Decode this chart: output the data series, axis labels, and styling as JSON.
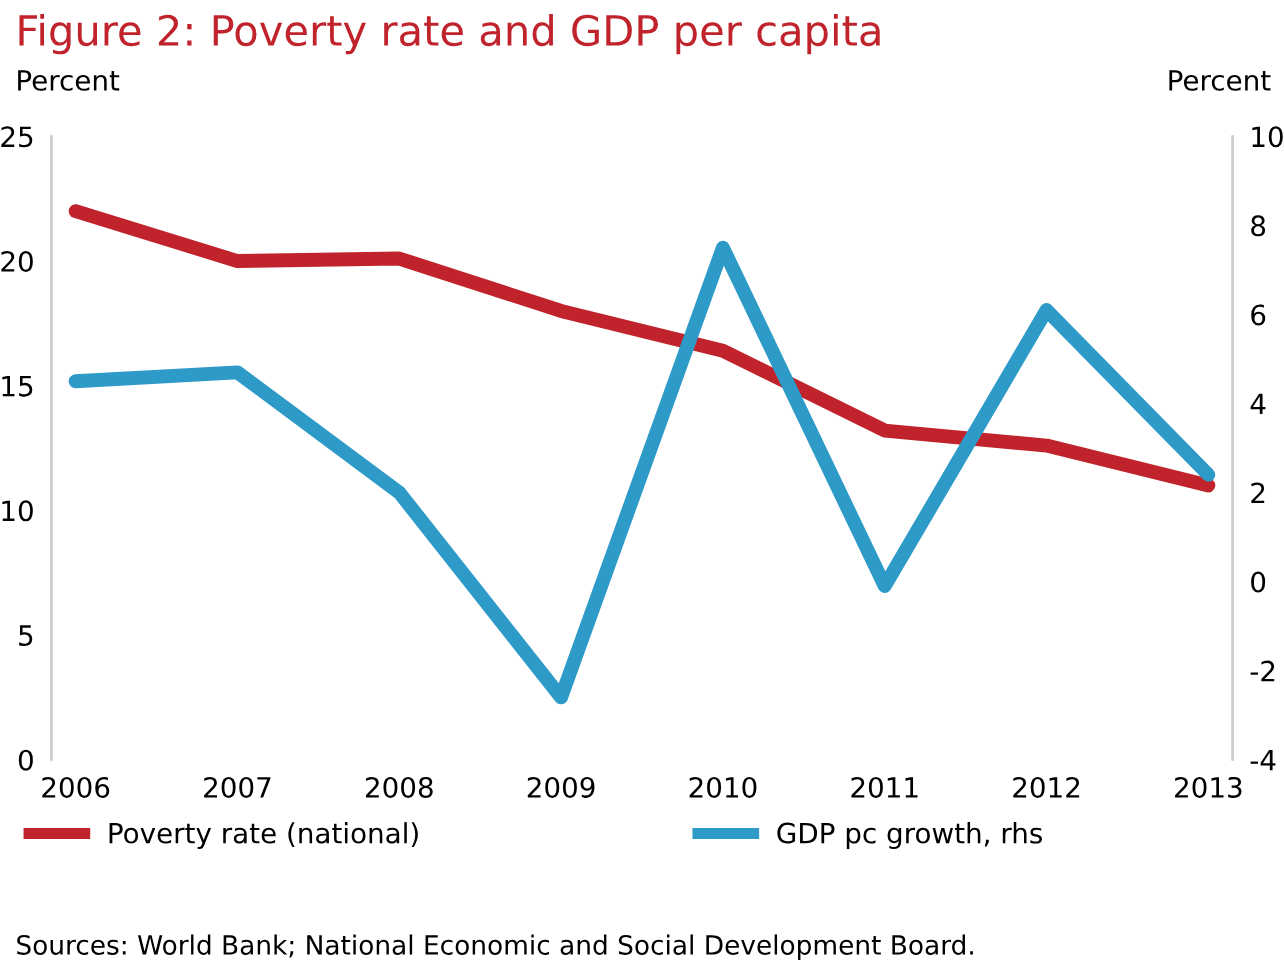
{
  "chart_data": {
    "type": "line",
    "title": "Figure 2: Poverty rate and GDP per capita",
    "ylabel": "Percent",
    "y2label": "Percent",
    "categories": [
      "2006",
      "2007",
      "2008",
      "2009",
      "2010",
      "2011",
      "2012",
      "2013"
    ],
    "series": [
      {
        "name": "Poverty rate (national)",
        "color": "#c0232b",
        "values": [
          22,
          20,
          20.1,
          18,
          16.4,
          13.2,
          12.6,
          11
        ]
      },
      {
        "name": "GDP pc growth, rhs",
        "color": "#2e9ac8",
        "axis": "y2",
        "values": [
          4.5,
          4.7,
          2.0,
          -2.6,
          7.5,
          -0.1,
          6.1,
          2.4
        ]
      }
    ],
    "ylim": [
      0,
      25
    ],
    "yticks": [
      0,
      5,
      10,
      15,
      20,
      25
    ],
    "y2lim": [
      -4,
      10
    ],
    "y2ticks": [
      -4,
      -2,
      0,
      2,
      4,
      6,
      8,
      10
    ],
    "grid": false,
    "legend": "bottom",
    "marker": "none",
    "line_style": "solid",
    "annotations": [
      "Sources: World Bank; National Economic and Social Development Board."
    ]
  }
}
